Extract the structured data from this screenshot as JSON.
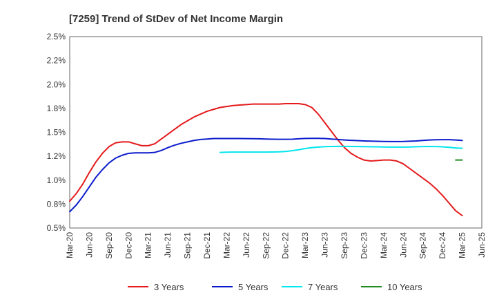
{
  "chart_data": {
    "type": "line",
    "title": "[7259]  Trend of StDev of Net Income Margin",
    "xlabel": "",
    "ylabel": "",
    "x_ticks": [
      "Mar-20",
      "Jun-20",
      "Sep-20",
      "Dec-20",
      "Mar-21",
      "Jun-21",
      "Sep-21",
      "Dec-21",
      "Mar-22",
      "Jun-22",
      "Sep-22",
      "Dec-22",
      "Mar-23",
      "Jun-23",
      "Sep-23",
      "Dec-23",
      "Mar-24",
      "Jun-24",
      "Sep-24",
      "Dec-24",
      "Mar-25",
      "Jun-25"
    ],
    "y_ticks": [
      "2.5%",
      "2.2%",
      "2.0%",
      "1.8%",
      "1.5%",
      "1.2%",
      "1.0%",
      "0.8%",
      "0.5%"
    ],
    "y_tick_values": [
      2.5,
      2.25,
      2.0,
      1.75,
      1.5,
      1.25,
      1.0,
      0.75,
      0.5
    ],
    "ylim": [
      0.5,
      2.5
    ],
    "grid": true,
    "legend_position": "bottom",
    "series": [
      {
        "name": "3 Years",
        "color": "#e41a1c",
        "points": [
          [
            "Mar-20",
            0.78
          ],
          [
            "Apr-20",
            0.86
          ],
          [
            "May-20",
            0.96
          ],
          [
            "Jun-20",
            1.08
          ],
          [
            "Jul-20",
            1.19
          ],
          [
            "Aug-20",
            1.28
          ],
          [
            "Sep-20",
            1.35
          ],
          [
            "Oct-20",
            1.39
          ],
          [
            "Nov-20",
            1.4
          ],
          [
            "Dec-20",
            1.4
          ],
          [
            "Jan-21",
            1.38
          ],
          [
            "Feb-21",
            1.36
          ],
          [
            "Mar-21",
            1.36
          ],
          [
            "Apr-21",
            1.38
          ],
          [
            "May-21",
            1.43
          ],
          [
            "Jun-21",
            1.48
          ],
          [
            "Jul-21",
            1.53
          ],
          [
            "Aug-21",
            1.58
          ],
          [
            "Sep-21",
            1.62
          ],
          [
            "Oct-21",
            1.66
          ],
          [
            "Nov-21",
            1.69
          ],
          [
            "Dec-21",
            1.72
          ],
          [
            "Jan-22",
            1.74
          ],
          [
            "Feb-22",
            1.76
          ],
          [
            "Mar-22",
            1.77
          ],
          [
            "Apr-22",
            1.78
          ],
          [
            "May-22",
            1.785
          ],
          [
            "Jun-22",
            1.79
          ],
          [
            "Jul-22",
            1.795
          ],
          [
            "Aug-22",
            1.795
          ],
          [
            "Sep-22",
            1.795
          ],
          [
            "Oct-22",
            1.795
          ],
          [
            "Nov-22",
            1.795
          ],
          [
            "Dec-22",
            1.8
          ],
          [
            "Jan-23",
            1.8
          ],
          [
            "Feb-23",
            1.8
          ],
          [
            "Mar-23",
            1.79
          ],
          [
            "Apr-23",
            1.76
          ],
          [
            "May-23",
            1.69
          ],
          [
            "Jun-23",
            1.6
          ],
          [
            "Jul-23",
            1.51
          ],
          [
            "Aug-23",
            1.42
          ],
          [
            "Sep-23",
            1.34
          ],
          [
            "Oct-23",
            1.28
          ],
          [
            "Nov-23",
            1.24
          ],
          [
            "Dec-23",
            1.21
          ],
          [
            "Jan-24",
            1.2
          ],
          [
            "Feb-24",
            1.205
          ],
          [
            "Mar-24",
            1.21
          ],
          [
            "Apr-24",
            1.21
          ],
          [
            "May-24",
            1.2
          ],
          [
            "Jun-24",
            1.17
          ],
          [
            "Jul-24",
            1.12
          ],
          [
            "Aug-24",
            1.07
          ],
          [
            "Sep-24",
            1.02
          ],
          [
            "Oct-24",
            0.97
          ],
          [
            "Nov-24",
            0.91
          ],
          [
            "Dec-24",
            0.84
          ],
          [
            "Jan-25",
            0.76
          ],
          [
            "Feb-25",
            0.68
          ],
          [
            "Mar-25",
            0.63
          ]
        ]
      },
      {
        "name": "5 Years",
        "color": "#0b1bcc",
        "points": [
          [
            "Mar-20",
            0.67
          ],
          [
            "Apr-20",
            0.74
          ],
          [
            "May-20",
            0.83
          ],
          [
            "Jun-20",
            0.93
          ],
          [
            "Jul-20",
            1.03
          ],
          [
            "Aug-20",
            1.11
          ],
          [
            "Sep-20",
            1.18
          ],
          [
            "Oct-20",
            1.23
          ],
          [
            "Nov-20",
            1.26
          ],
          [
            "Dec-20",
            1.28
          ],
          [
            "Jan-21",
            1.285
          ],
          [
            "Feb-21",
            1.285
          ],
          [
            "Mar-21",
            1.285
          ],
          [
            "Apr-21",
            1.29
          ],
          [
            "May-21",
            1.31
          ],
          [
            "Jun-21",
            1.34
          ],
          [
            "Jul-21",
            1.365
          ],
          [
            "Aug-21",
            1.385
          ],
          [
            "Sep-21",
            1.4
          ],
          [
            "Oct-21",
            1.415
          ],
          [
            "Nov-21",
            1.425
          ],
          [
            "Dec-21",
            1.43
          ],
          [
            "Jan-22",
            1.435
          ],
          [
            "Feb-22",
            1.435
          ],
          [
            "Mar-22",
            1.435
          ],
          [
            "Apr-22",
            1.435
          ],
          [
            "May-22",
            1.435
          ],
          [
            "Jun-22",
            1.434
          ],
          [
            "Jul-22",
            1.433
          ],
          [
            "Aug-22",
            1.432
          ],
          [
            "Sep-22",
            1.43
          ],
          [
            "Oct-22",
            1.428
          ],
          [
            "Nov-22",
            1.427
          ],
          [
            "Dec-22",
            1.427
          ],
          [
            "Jan-23",
            1.428
          ],
          [
            "Feb-23",
            1.432
          ],
          [
            "Mar-23",
            1.436
          ],
          [
            "Apr-23",
            1.437
          ],
          [
            "May-23",
            1.437
          ],
          [
            "Jun-23",
            1.435
          ],
          [
            "Jul-23",
            1.43
          ],
          [
            "Aug-23",
            1.425
          ],
          [
            "Sep-23",
            1.42
          ],
          [
            "Oct-23",
            1.416
          ],
          [
            "Nov-23",
            1.413
          ],
          [
            "Dec-23",
            1.41
          ],
          [
            "Jan-24",
            1.408
          ],
          [
            "Feb-24",
            1.406
          ],
          [
            "Mar-24",
            1.404
          ],
          [
            "Apr-24",
            1.403
          ],
          [
            "May-24",
            1.403
          ],
          [
            "Jun-24",
            1.404
          ],
          [
            "Jul-24",
            1.407
          ],
          [
            "Aug-24",
            1.41
          ],
          [
            "Sep-24",
            1.415
          ],
          [
            "Oct-24",
            1.42
          ],
          [
            "Nov-24",
            1.422
          ],
          [
            "Dec-24",
            1.423
          ],
          [
            "Jan-25",
            1.423
          ],
          [
            "Feb-25",
            1.42
          ],
          [
            "Mar-25",
            1.415
          ]
        ]
      },
      {
        "name": "7 Years",
        "color": "#00e5ee",
        "points": [
          [
            "Feb-22",
            1.29
          ],
          [
            "Mar-22",
            1.292
          ],
          [
            "Apr-22",
            1.293
          ],
          [
            "May-22",
            1.293
          ],
          [
            "Jun-22",
            1.293
          ],
          [
            "Jul-22",
            1.293
          ],
          [
            "Aug-22",
            1.293
          ],
          [
            "Sep-22",
            1.293
          ],
          [
            "Oct-22",
            1.294
          ],
          [
            "Nov-22",
            1.296
          ],
          [
            "Dec-22",
            1.3
          ],
          [
            "Jan-23",
            1.308
          ],
          [
            "Feb-23",
            1.318
          ],
          [
            "Mar-23",
            1.33
          ],
          [
            "Apr-23",
            1.34
          ],
          [
            "May-23",
            1.346
          ],
          [
            "Jun-23",
            1.35
          ],
          [
            "Jul-23",
            1.352
          ],
          [
            "Aug-23",
            1.353
          ],
          [
            "Sep-23",
            1.353
          ],
          [
            "Oct-23",
            1.352
          ],
          [
            "Nov-23",
            1.351
          ],
          [
            "Dec-23",
            1.35
          ],
          [
            "Jan-24",
            1.349
          ],
          [
            "Feb-24",
            1.348
          ],
          [
            "Mar-24",
            1.347
          ],
          [
            "Apr-24",
            1.346
          ],
          [
            "May-24",
            1.346
          ],
          [
            "Jun-24",
            1.346
          ],
          [
            "Jul-24",
            1.347
          ],
          [
            "Aug-24",
            1.349
          ],
          [
            "Sep-24",
            1.351
          ],
          [
            "Oct-24",
            1.352
          ],
          [
            "Nov-24",
            1.351
          ],
          [
            "Dec-24",
            1.348
          ],
          [
            "Jan-25",
            1.343
          ],
          [
            "Feb-25",
            1.337
          ],
          [
            "Mar-25",
            1.333
          ]
        ]
      },
      {
        "name": "10 Years",
        "color": "#228b22",
        "points": [
          [
            "Feb-25",
            1.21
          ],
          [
            "Mar-25",
            1.21
          ]
        ]
      }
    ]
  }
}
